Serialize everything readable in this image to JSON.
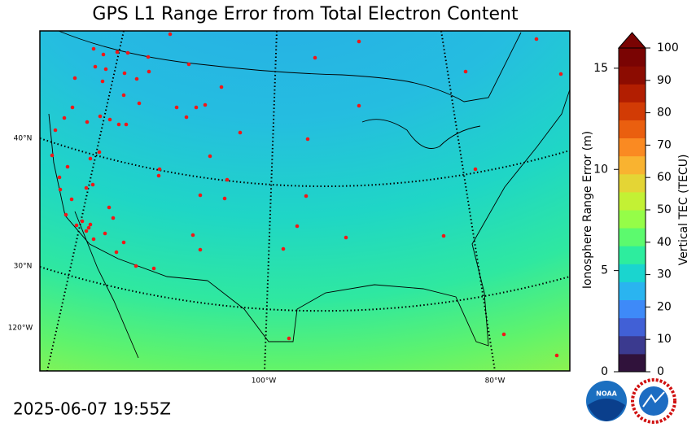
{
  "title": "GPS L1 Range Error from Total Electron Content",
  "map": {
    "lat_labels": [
      "40°N",
      "30°N"
    ],
    "lon_labels": [
      "120°W",
      "100°W",
      "80°W"
    ]
  },
  "colorbar": {
    "error_label": "Ionosphere Range Error (m)",
    "error_lim": [
      0,
      16
    ],
    "error_ticks": [
      0,
      5,
      10,
      15
    ],
    "tec_label": "Vertical TEC (TECU)",
    "tec_lim": [
      0,
      100
    ],
    "tec_ticks": [
      0,
      10,
      20,
      30,
      40,
      50,
      60,
      70,
      80,
      90,
      100
    ],
    "colors": [
      "#30123b",
      "#3b3a8f",
      "#4160d6",
      "#3e8af8",
      "#2ab4f0",
      "#1ad5cf",
      "#2ded9e",
      "#5cfa6e",
      "#95fd48",
      "#c3f134",
      "#e4d535",
      "#f9b330",
      "#fa8a22",
      "#ea5f0f",
      "#d23b05",
      "#b21e01",
      "#8c0c01",
      "#7a0403"
    ],
    "extend_color": "#7a0403"
  },
  "timestamp": "2025-06-07 19:55Z",
  "logos": {
    "noaa": "NOAA"
  }
}
